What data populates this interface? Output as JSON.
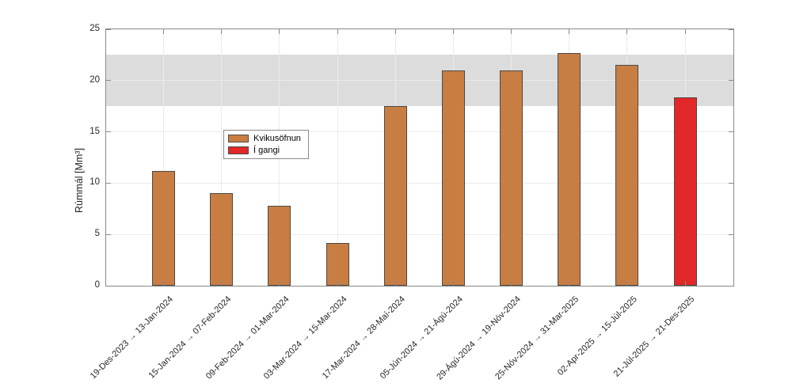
{
  "chart_data": {
    "type": "bar",
    "title": "",
    "xlabel": "",
    "ylabel": "Rúmmál [Mm³]",
    "ylim": [
      0,
      25
    ],
    "yticks": [
      0,
      5,
      10,
      15,
      20,
      25
    ],
    "grid": true,
    "legend_position": "inside-upper-left",
    "categories": [
      "19-Des-2023 → 13-Jan-2024",
      "15-Jan-2024 → 07-Feb-2024",
      "09-Feb-2024 → 01-Mar-2024",
      "03-Mar-2024 → 15-Mar-2024",
      "17-Mar-2024 → 28-Maí-2024",
      "05-Jún-2024 → 21-Ágú-2024",
      "29-Ágú-2024 → 19-Nóv-2024",
      "25-Nóv-2024 → 31-Mar-2025",
      "02-Apr-2025 → 15-Júl-2025",
      "21-Júl-2025 → 21-Des-2025"
    ],
    "values": [
      11.2,
      9.0,
      7.8,
      4.2,
      17.5,
      21.0,
      21.0,
      22.7,
      21.5,
      18.4
    ],
    "bar_status": [
      "Kvikusöfnun",
      "Kvikusöfnun",
      "Kvikusöfnun",
      "Kvikusöfnun",
      "Kvikusöfnun",
      "Kvikusöfnun",
      "Kvikusöfnun",
      "Kvikusöfnun",
      "Kvikusöfnun",
      "Í gangi"
    ],
    "band": {
      "from": 17.55,
      "to": 22.55
    },
    "colors": {
      "kvikusofnun": "#C87D42",
      "i_gangi": "#E22728",
      "bar_edge": "#4A4A4A",
      "band": "#DCDCDC",
      "grid": "#EBEBEB",
      "axis": "#8A8A8A",
      "text": "#262626"
    }
  },
  "legend": {
    "entries": [
      {
        "label": "Kvikusöfnun",
        "color_key": "kvikusofnun"
      },
      {
        "label": "Í gangi",
        "color_key": "i_gangi"
      }
    ]
  }
}
